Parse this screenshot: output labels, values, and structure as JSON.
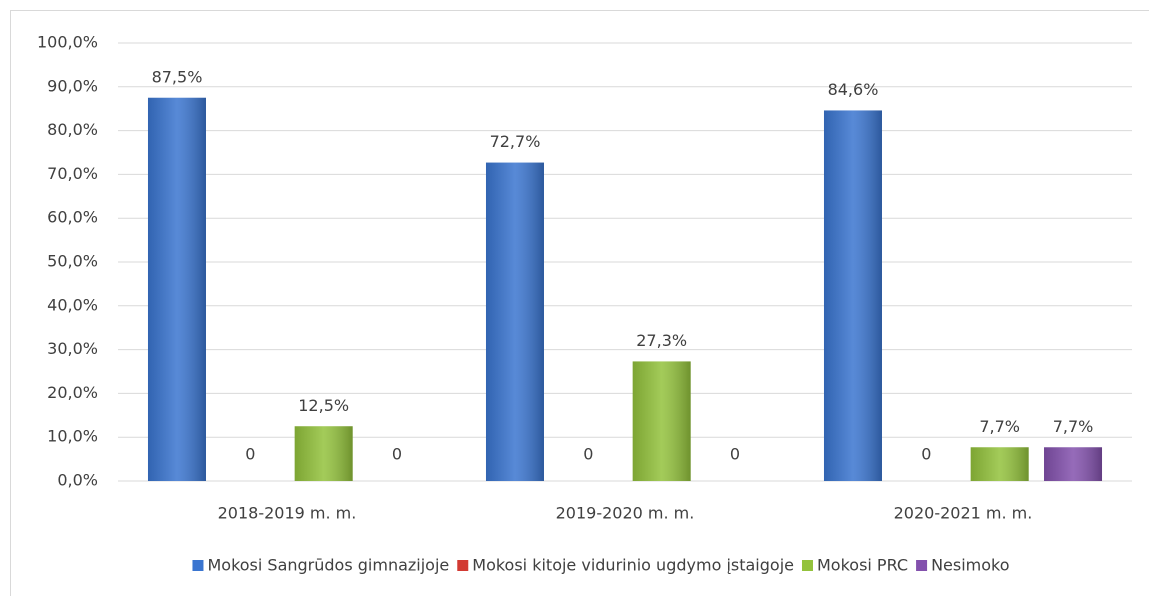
{
  "chart_data": {
    "type": "bar",
    "categories": [
      "2018-2019 m. m.",
      "2019-2020 m. m.",
      "2020-2021 m. m."
    ],
    "series": [
      {
        "name": "Mokosi Sangrūdos gimnazijoje",
        "color": "#3a75d0",
        "values": [
          87.5,
          72.7,
          84.6
        ],
        "value_labels": [
          "87,5%",
          "72,7%",
          "84,6%"
        ]
      },
      {
        "name": "Mokosi kitoje vidurinio ugdymo įstaigoje",
        "color": "#d23a33",
        "values": [
          0,
          0,
          0
        ],
        "value_labels": [
          "0",
          "0",
          "0"
        ]
      },
      {
        "name": "Mokosi PRC",
        "color": "#93c23c",
        "values": [
          12.5,
          27.3,
          7.7
        ],
        "value_labels": [
          "12,5%",
          "27,3%",
          "7,7%"
        ]
      },
      {
        "name": "Nesimoko",
        "color": "#8351ad",
        "values": [
          0,
          0,
          7.7
        ],
        "value_labels": [
          "0",
          "0",
          "7,7%"
        ]
      }
    ],
    "ylim": [
      0,
      100
    ],
    "yticks": [
      {
        "value": 0,
        "label": "0,0%"
      },
      {
        "value": 10,
        "label": "10,0%"
      },
      {
        "value": 20,
        "label": "20,0%"
      },
      {
        "value": 30,
        "label": "30,0%"
      },
      {
        "value": 40,
        "label": "40,0%"
      },
      {
        "value": 50,
        "label": "50,0%"
      },
      {
        "value": 60,
        "label": "60,0%"
      },
      {
        "value": 70,
        "label": "70,0%"
      },
      {
        "value": 80,
        "label": "80,0%"
      },
      {
        "value": 90,
        "label": "90,0%"
      },
      {
        "value": 100,
        "label": "100,0%"
      }
    ],
    "grid": true,
    "legend": "bottom"
  }
}
